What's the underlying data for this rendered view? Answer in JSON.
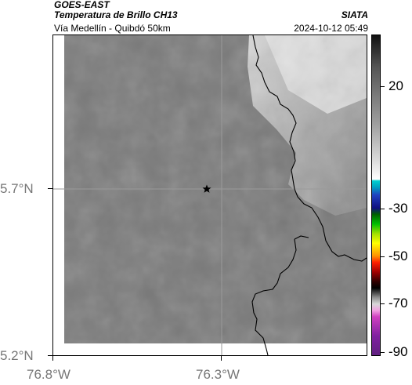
{
  "header": {
    "satellite": "GOES-EAST",
    "title": "Temperatura de Brillo CH13",
    "subtitle": "Vía Medellín - Quibdó 50km",
    "organization": "SIATA",
    "timestamp": "2024-10-12 05:49"
  },
  "map": {
    "lat_ticks": [
      "5.7°N",
      "5.2°N"
    ],
    "lon_ticks": [
      "76.8°W",
      "76.3°W"
    ],
    "marker": "star-marker"
  },
  "colorbar": {
    "labels": [
      "20",
      "-30",
      "-50",
      "-70",
      "-90"
    ],
    "colors": [
      "#111111",
      "#ffffff",
      "#00c8c8",
      "#1010a0",
      "#00c000",
      "#ffff00",
      "#ff8000",
      "#c00000",
      "#000000",
      "#c0c0c0",
      "#a020a0"
    ]
  }
}
